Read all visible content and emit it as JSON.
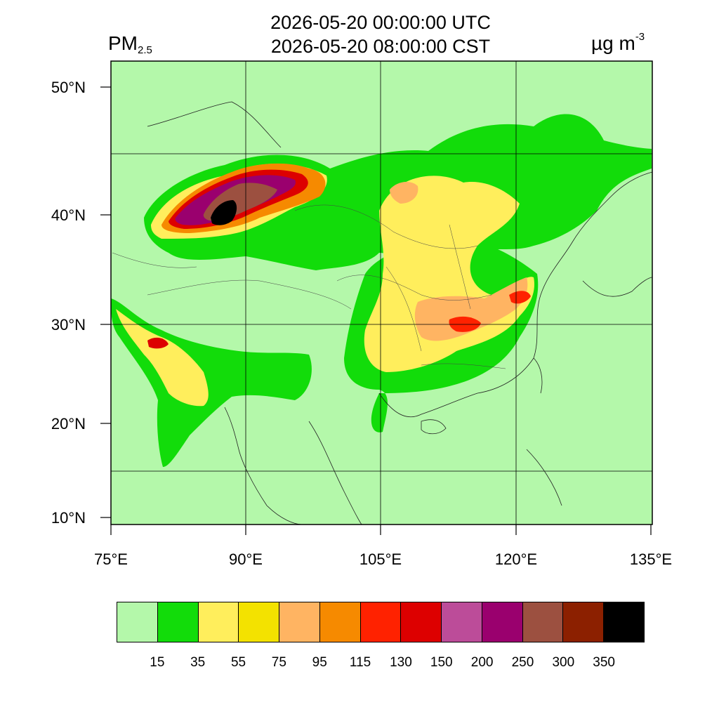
{
  "title": {
    "utc": "2026-05-20 00:00:00 UTC",
    "cst": "2026-05-20 08:00:00 CST"
  },
  "variable": {
    "name": "PM",
    "subscript": "2.5"
  },
  "units": {
    "base": "µg m",
    "exponent": "-3"
  },
  "axes": {
    "lat_labels": [
      "50°N",
      "40°N",
      "30°N",
      "20°N",
      "10°N"
    ],
    "lon_labels": [
      "75°E",
      "90°E",
      "105°E",
      "120°E",
      "135°E"
    ]
  },
  "colorbar": {
    "colors": [
      "#b4f8aa",
      "#12dc0a",
      "#ffee5c",
      "#f3e200",
      "#ffb462",
      "#f68a00",
      "#ff2200",
      "#dd0000",
      "#bc4c99",
      "#9a006e",
      "#9c5040",
      "#8c2000",
      "#000000"
    ],
    "tick_labels": [
      "15",
      "35",
      "55",
      "75",
      "95",
      "115",
      "130",
      "150",
      "200",
      "250",
      "300",
      "350"
    ]
  }
}
